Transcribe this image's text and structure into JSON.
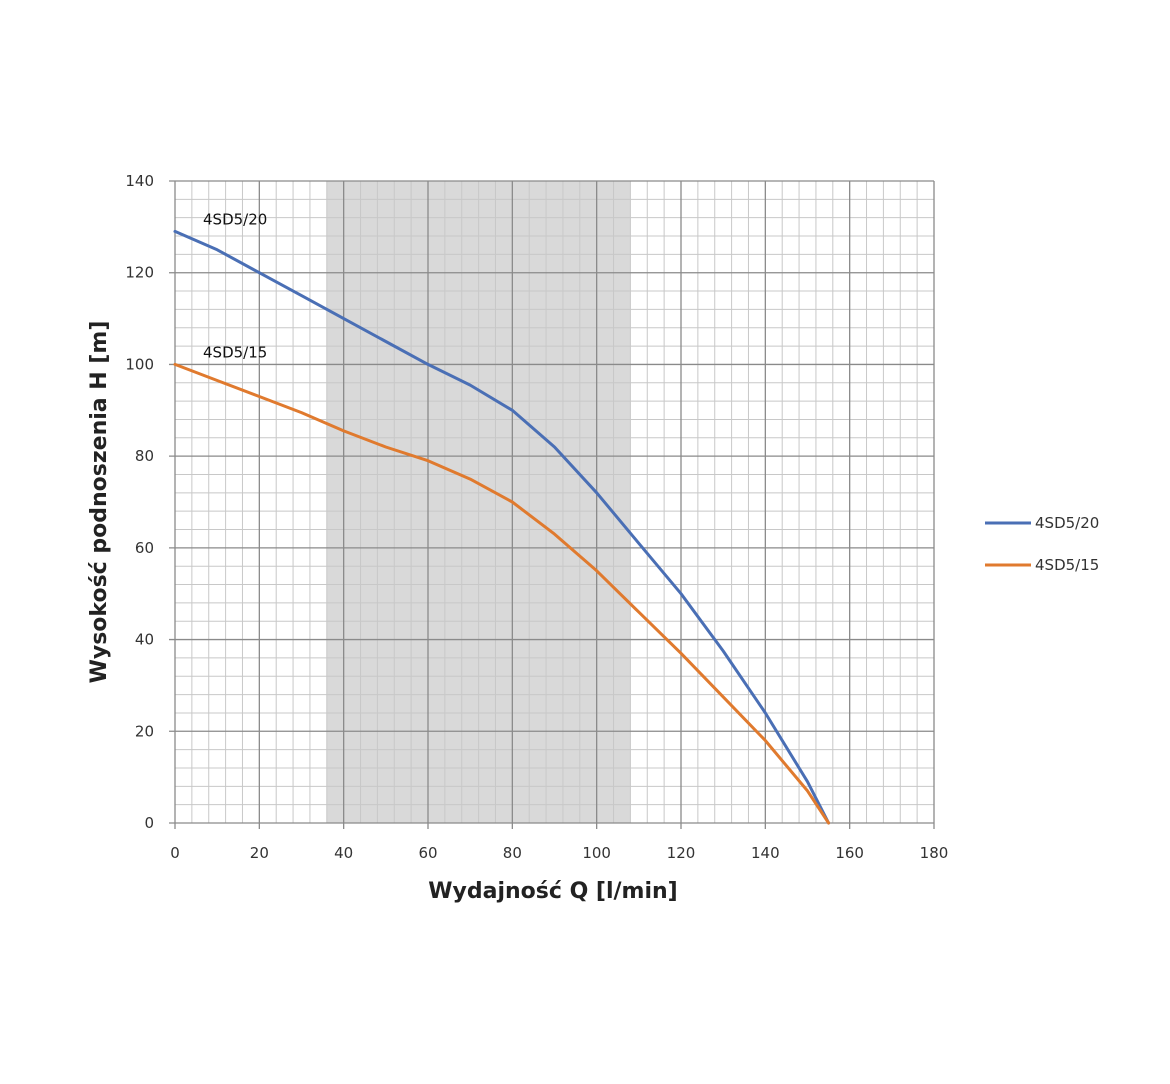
{
  "chart_data": {
    "type": "line",
    "title": "",
    "xlabel": "Wydajność Q [l/min]",
    "ylabel": "Wysokość podnoszenia H [m]",
    "xlim": [
      0,
      180
    ],
    "ylim": [
      0,
      140
    ],
    "x_ticks": [
      0,
      20,
      40,
      60,
      80,
      100,
      120,
      140,
      160,
      180
    ],
    "y_ticks": [
      0,
      20,
      40,
      60,
      80,
      100,
      120,
      140
    ],
    "grid": true,
    "legend_position": "right",
    "highlight_range_x": [
      36,
      108
    ],
    "highlight_color": "#d9d9d9",
    "series": [
      {
        "name": "4SD5/20",
        "color": "#4a6fb5",
        "x": [
          0,
          10,
          20,
          30,
          40,
          50,
          60,
          70,
          80,
          90,
          100,
          110,
          120,
          130,
          140,
          150,
          155
        ],
        "y": [
          129,
          125,
          120,
          115,
          110,
          105,
          100,
          95.5,
          90,
          82,
          72,
          61,
          50,
          37.5,
          24,
          9,
          0
        ]
      },
      {
        "name": "4SD5/15",
        "color": "#e07a2e",
        "x": [
          0,
          10,
          20,
          30,
          40,
          50,
          60,
          70,
          80,
          90,
          100,
          110,
          120,
          130,
          140,
          150,
          155
        ],
        "y": [
          100,
          96.5,
          93,
          89.5,
          85.5,
          82,
          79,
          75,
          70,
          63,
          55,
          46,
          37,
          27.5,
          18,
          7,
          0
        ]
      }
    ]
  }
}
